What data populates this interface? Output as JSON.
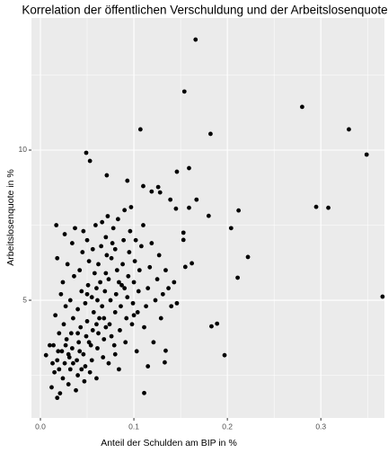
{
  "chart_data": {
    "type": "scatter",
    "title": "Korrelation der öffentlichen Verschuldung und der Arbeitslosenquote",
    "x_label": "Anteil der Schulden am BIP in %",
    "y_label": "Arbeitslosenquote in %",
    "color": "#000000",
    "grid": true,
    "xlim": [
      -0.0096,
      0.368
    ],
    "ylim": [
      1.08,
      14.4
    ],
    "xticks": [
      {
        "value": 0,
        "label": "0.0"
      },
      0.1,
      0.2,
      0.3
    ],
    "yticks": [
      5,
      10
    ],
    "x_minor_ticks": [
      0.05,
      0.15,
      0.25,
      0.35
    ],
    "y_minor_ticks": [
      2.5,
      7.5,
      12.5
    ],
    "x": [
      0.166,
      0.154,
      0.28,
      0.107,
      0.33,
      0.182,
      0.349,
      0.049,
      0.053,
      0.071,
      0.146,
      0.159,
      0.093,
      0.11,
      0.126,
      0.119,
      0.128,
      0.139,
      0.167,
      0.295,
      0.308,
      0.145,
      0.159,
      0.212,
      0.18,
      0.204,
      0.153,
      0.153,
      0.222,
      0.162,
      0.155,
      0.211,
      0.366,
      0.183,
      0.189,
      0.197,
      0.111,
      0.006,
      0.018,
      0.134,
      0.133,
      0.012,
      0.015,
      0.018,
      0.014,
      0.02,
      0.016,
      0.022,
      0.018,
      0.017,
      0.021,
      0.024,
      0.026,
      0.023,
      0.028,
      0.025,
      0.027,
      0.024,
      0.029,
      0.026,
      0.03,
      0.032,
      0.031,
      0.034,
      0.033,
      0.035,
      0.032,
      0.036,
      0.034,
      0.037,
      0.038,
      0.04,
      0.039,
      0.042,
      0.041,
      0.043,
      0.04,
      0.044,
      0.042,
      0.045,
      0.046,
      0.047,
      0.048,
      0.046,
      0.049,
      0.05,
      0.048,
      0.051,
      0.052,
      0.05,
      0.053,
      0.055,
      0.054,
      0.056,
      0.057,
      0.055,
      0.058,
      0.056,
      0.059,
      0.06,
      0.061,
      0.062,
      0.063,
      0.061,
      0.064,
      0.062,
      0.065,
      0.066,
      0.067,
      0.068,
      0.066,
      0.069,
      0.07,
      0.071,
      0.07,
      0.072,
      0.073,
      0.074,
      0.075,
      0.073,
      0.076,
      0.077,
      0.078,
      0.079,
      0.08,
      0.081,
      0.082,
      0.08,
      0.083,
      0.084,
      0.085,
      0.086,
      0.087,
      0.088,
      0.089,
      0.09,
      0.091,
      0.092,
      0.093,
      0.094,
      0.095,
      0.096,
      0.097,
      0.098,
      0.099,
      0.1,
      0.101,
      0.102,
      0.103,
      0.104,
      0.105,
      0.106,
      0.108,
      0.11,
      0.111,
      0.113,
      0.115,
      0.117,
      0.119,
      0.121,
      0.123,
      0.125,
      0.127,
      0.129,
      0.131,
      0.134,
      0.137,
      0.14,
      0.143,
      0.146,
      0.115,
      0.013,
      0.019,
      0.027,
      0.035,
      0.044,
      0.052,
      0.06,
      0.068,
      0.076,
      0.084,
      0.01,
      0.02,
      0.03,
      0.04,
      0.05,
      0.06,
      0.07,
      0.08,
      0.09,
      0.1
    ],
    "values": [
      13.68,
      11.95,
      11.44,
      10.69,
      10.69,
      10.54,
      9.85,
      9.91,
      9.64,
      9.16,
      9.28,
      9.4,
      8.98,
      8.8,
      8.77,
      8.62,
      8.59,
      8.35,
      8.35,
      8.11,
      8.08,
      8.05,
      8.08,
      7.99,
      7.81,
      7.4,
      7.25,
      7.01,
      6.44,
      6.23,
      6.11,
      5.75,
      5.12,
      4.13,
      4.22,
      3.17,
      1.91,
      3.17,
      1.75,
      3.32,
      2.93,
      2.1,
      2.6,
      3.0,
      3.5,
      3.9,
      4.5,
      5.2,
      6.4,
      7.5,
      1.9,
      2.4,
      2.9,
      3.3,
      3.7,
      4.2,
      4.8,
      5.6,
      6.2,
      7.2,
      2.2,
      2.7,
      3.1,
      3.4,
      3.9,
      4.4,
      5.0,
      5.8,
      6.9,
      7.4,
      2.0,
      2.5,
      3.0,
      3.3,
      3.6,
      4.1,
      4.7,
      5.3,
      6.0,
      6.6,
      7.3,
      2.3,
      2.8,
      3.2,
      3.8,
      4.3,
      4.9,
      5.5,
      6.3,
      7.0,
      2.6,
      3.0,
      3.5,
      4.0,
      4.6,
      5.1,
      5.9,
      6.7,
      7.5,
      2.4,
      3.4,
      3.9,
      4.4,
      5.0,
      5.6,
      6.2,
      6.8,
      7.6,
      3.1,
      3.7,
      4.8,
      5.3,
      5.9,
      6.5,
      7.1,
      7.8,
      2.9,
      4.2,
      5.0,
      5.7,
      6.4,
      6.9,
      7.4,
      3.5,
      4.6,
      5.2,
      6.0,
      6.7,
      7.7,
      2.7,
      4.0,
      4.8,
      5.5,
      6.2,
      7.0,
      8.0,
      3.6,
      4.4,
      5.1,
      5.8,
      6.6,
      7.3,
      8.1,
      4.2,
      4.9,
      5.6,
      6.3,
      7.0,
      3.3,
      4.6,
      5.3,
      6.0,
      6.8,
      7.5,
      4.1,
      4.8,
      5.4,
      6.1,
      6.9,
      3.6,
      5.0,
      5.7,
      6.5,
      4.4,
      5.2,
      6.0,
      5.4,
      4.8,
      5.6,
      4.9,
      2.8,
      2.9,
      3.3,
      3.5,
      2.9,
      2.7,
      3.6,
      4.2,
      4.4,
      3.8,
      5.6,
      3.5,
      2.7,
      3.2,
      3.9,
      5.2,
      5.4,
      4.1,
      3.2,
      5.4,
      4.5
    ]
  }
}
